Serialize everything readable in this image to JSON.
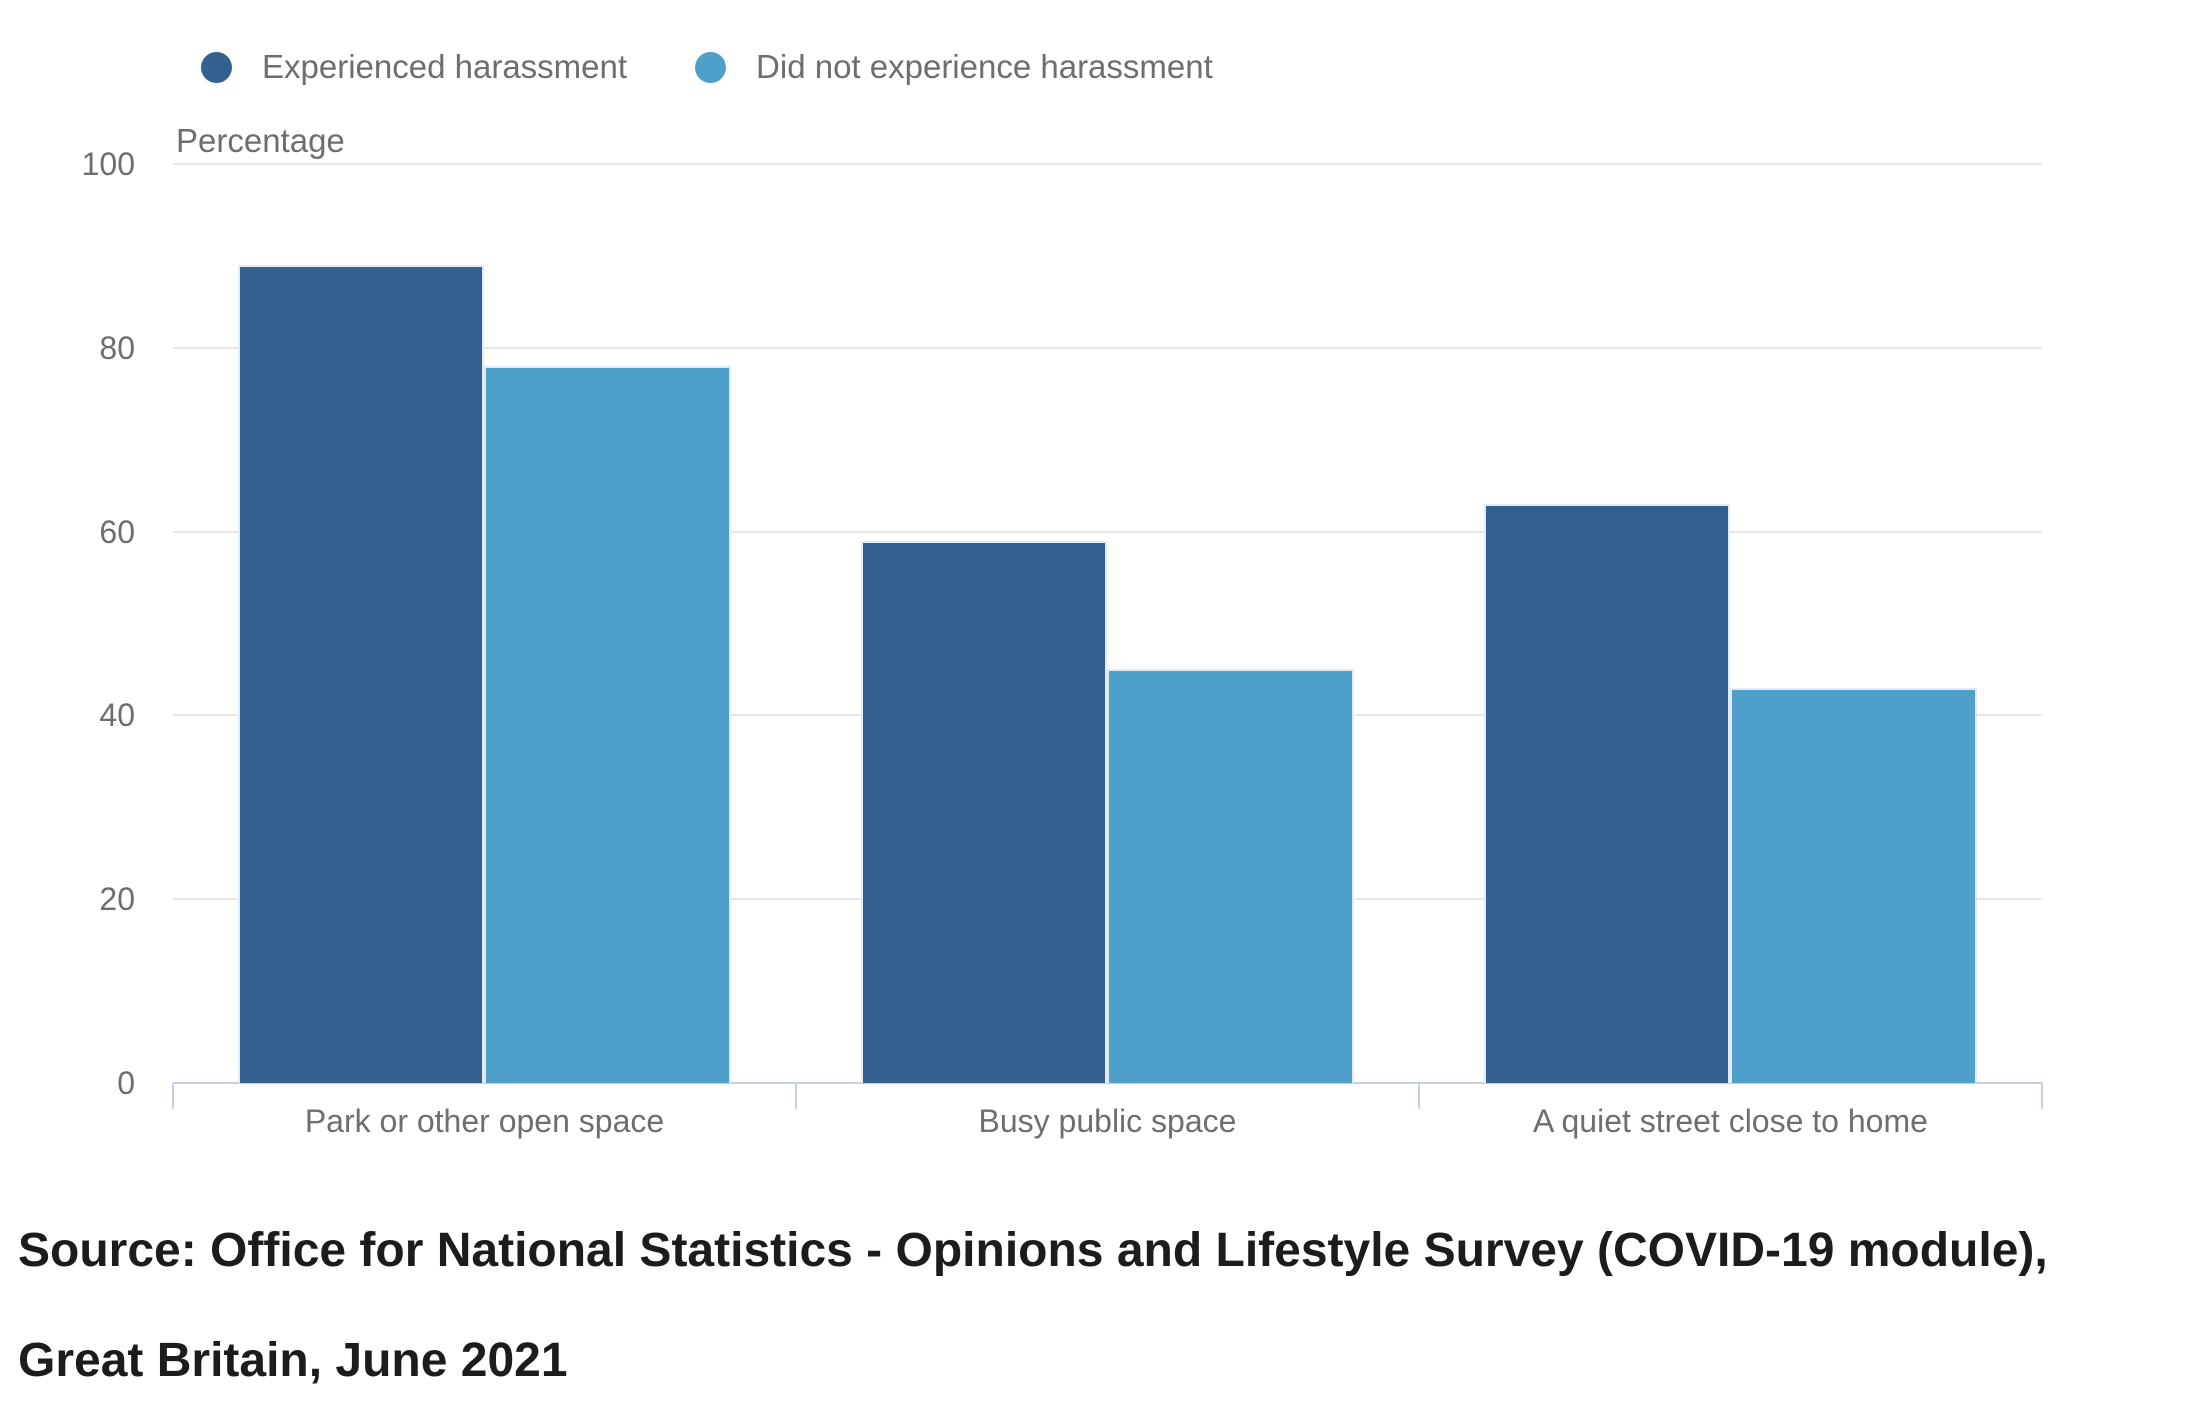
{
  "chart_data": {
    "type": "bar",
    "title": "",
    "y_axis_title": "Percentage",
    "categories": [
      "Park or other open space",
      "Busy public space",
      "A quiet street close to home"
    ],
    "series": [
      {
        "name": "Experienced harassment",
        "color": "#32618f",
        "values": [
          89,
          59,
          63
        ]
      },
      {
        "name": "Did not experience harassment",
        "color": "#4f9fcb",
        "values": [
          78,
          45,
          43
        ]
      }
    ],
    "ylim": [
      0,
      100
    ],
    "yticks": [
      0,
      20,
      40,
      60,
      80,
      100
    ],
    "grid": "horizontal",
    "legend_position": "top-left"
  },
  "source_note": "Source: Office for National Statistics - Opinions and Lifestyle Survey (COVID-19 module), Great Britain, June 2021",
  "colors": {
    "grid": "#e7e7e7",
    "axis": "#c9cfe3",
    "label_text": "#6e6e6e",
    "source_text": "#1c1c1c",
    "background": "#ffffff"
  }
}
